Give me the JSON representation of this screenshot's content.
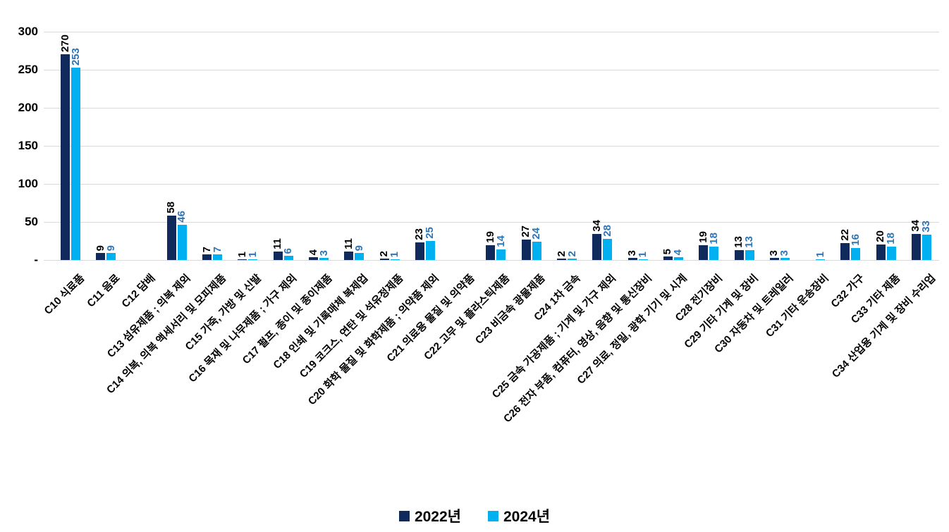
{
  "chart_data": {
    "type": "bar",
    "title": "",
    "categories": [
      "C10 식료품",
      "C11 음료",
      "C12 담배",
      "C13 섬유제품 ; 의복 제외",
      "C14 의복, 의복 액세서리 및 모피제품",
      "C15 가죽, 가방 및 신발",
      "C16 목재 및 나무제품 ; 가구 제외",
      "C17 펄프, 종이 및 종이제품",
      "C18 인쇄 및 기록매체 복제업",
      "C19 코크스, 연탄 및 석유정제품",
      "C20 화학 물질 및 화학제품 ; 의약품 제외",
      "C21 의료용 물질 및 의약품",
      "C22 고무 및 플라스틱제품",
      "C23 비금속 광물제품",
      "C24 1차 금속",
      "C25 금속 가공제품 ; 기계 및 가구 제외",
      "C26 전자 부품, 컴퓨터, 영상, 음향 및 통신장비",
      "C27 의료, 정밀, 광학 기기 및 시계",
      "C28 전기장비",
      "C29 기타 기계 및 장비",
      "C30 자동차 및 트레일러",
      "C31 기타 운송장비",
      "C32 가구",
      "C33 기타 제품",
      "C34 산업용 기계 및 장비 수리업"
    ],
    "series": [
      {
        "name": "2022년",
        "color": "#112a5c",
        "label_color": "#000000",
        "values": [
          270,
          9,
          null,
          58,
          7,
          1,
          11,
          4,
          11,
          2,
          23,
          null,
          19,
          27,
          2,
          34,
          3,
          5,
          19,
          13,
          3,
          null,
          22,
          20,
          34
        ]
      },
      {
        "name": "2024년",
        "color": "#00b0f0",
        "label_color": "#2e75b6",
        "values": [
          253,
          9,
          null,
          46,
          7,
          1,
          6,
          3,
          9,
          1,
          25,
          null,
          14,
          24,
          2,
          28,
          1,
          4,
          18,
          13,
          3,
          1,
          16,
          18,
          33
        ]
      }
    ],
    "y_axis": {
      "min": 0,
      "max": 300,
      "step": 50,
      "tick_labels": [
        "300",
        "250",
        "200",
        "150",
        "100",
        "50",
        "-"
      ]
    },
    "grid": true,
    "legend_position": "bottom",
    "colors": {
      "gridline": "#d9d9d9",
      "background": "#ffffff"
    }
  }
}
